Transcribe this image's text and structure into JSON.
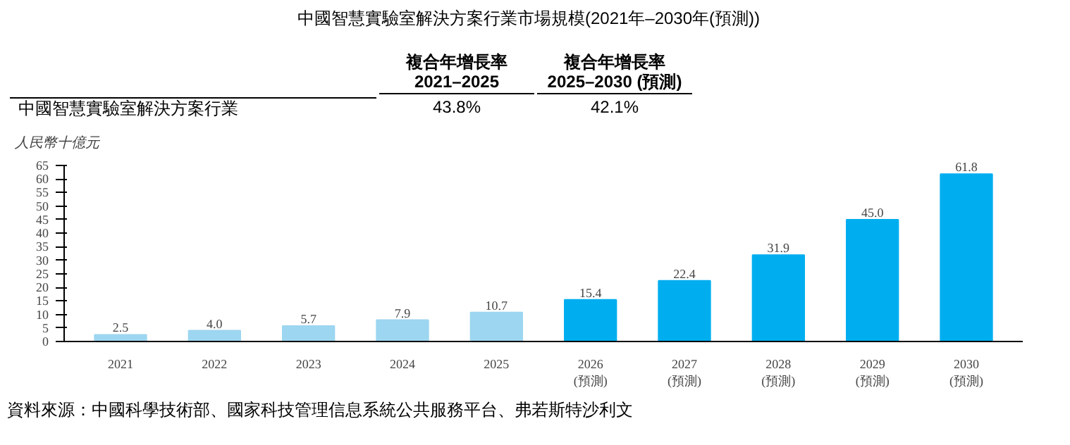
{
  "chart_data": {
    "type": "bar",
    "title": "中國智慧實驗室解決方案行業市場規模(2021年–2030年(預測))",
    "ylabel": "人民幣十億元",
    "categories": [
      "2021",
      "2022",
      "2023",
      "2024",
      "2025",
      "2026\n(預測)",
      "2027\n(預測)",
      "2028\n(預測)",
      "2029\n(預測)",
      "2030\n(預測)"
    ],
    "values": [
      2.5,
      4.0,
      5.7,
      7.9,
      10.7,
      15.4,
      22.4,
      31.9,
      45.0,
      61.8
    ],
    "colors": [
      "#9dd6f0",
      "#9dd6f0",
      "#9dd6f0",
      "#9dd6f0",
      "#9dd6f0",
      "#00aeef",
      "#00aeef",
      "#00aeef",
      "#00aeef",
      "#00aeef"
    ],
    "value_labels": [
      "2.5",
      "4.0",
      "5.7",
      "7.9",
      "10.7",
      "15.4",
      "22.4",
      "31.9",
      "45.0",
      "61.8"
    ],
    "ylim": [
      0,
      65
    ],
    "yticks": [
      0,
      5,
      10,
      15,
      20,
      25,
      30,
      35,
      40,
      45,
      50,
      55,
      60,
      65
    ],
    "grid": false,
    "annotations": [
      "複合年增長率\n2021–2025",
      "複合年增長率\n2025–2030 (預測)",
      "中國智慧實驗室解決方案行業",
      "43.8%",
      "42.1%",
      "資料來源：中國科學技術部、國家科技管理信息系統公共服務平台、弗若斯特沙利文"
    ]
  }
}
